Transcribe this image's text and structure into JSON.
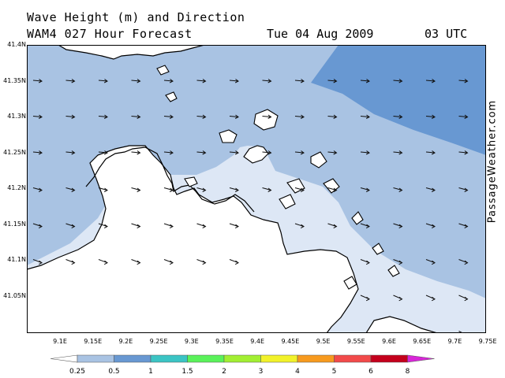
{
  "title": {
    "line1": "Wave Height (m) and Direction",
    "line2": "WAM4 027 Hour Forecast",
    "date": "Tue 04 Aug 2009",
    "time": "03 UTC"
  },
  "watermark": "PassageWeather.com",
  "map": {
    "lat_labels": [
      "41.4N",
      "41.35N",
      "41.3N",
      "41.25N",
      "41.2N",
      "41.15N",
      "41.1N",
      "41.05N"
    ],
    "lon_labels": [
      "9.1E",
      "9.15E",
      "9.2E",
      "9.25E",
      "9.3E",
      "9.35E",
      "9.4E",
      "9.45E",
      "9.5E",
      "9.55E",
      "9.6E",
      "9.65E",
      "9.7E",
      "9.75E"
    ],
    "lat_range": [
      41.0,
      41.4
    ],
    "lon_range": [
      9.05,
      9.75
    ],
    "arrow_direction": "east-southeast",
    "colors": {
      "land": "#ffffff",
      "band_025_05": "#dde7f5",
      "band_05_1": "#a9c3e3",
      "band_1_15": "#6898d2"
    }
  },
  "legend": {
    "labels": [
      "0.25",
      "0.5",
      "1",
      "1.5",
      "2",
      "3",
      "4",
      "5",
      "6",
      "8"
    ],
    "colors": [
      "#dde7f5",
      "#a9c3e3",
      "#6898d2",
      "#3bc4c4",
      "#5af25a",
      "#a2ef32",
      "#f2f22a",
      "#f79a1e",
      "#f24a4a",
      "#c4001c",
      "#d826d8"
    ]
  }
}
